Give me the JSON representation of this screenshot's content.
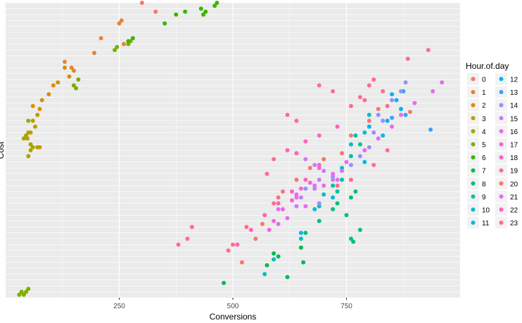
{
  "chart_data": {
    "type": "scatter",
    "xlabel": "Conversions",
    "ylabel": "Cost",
    "xlim": [
      0,
      1000
    ],
    "x_ticks": [
      250,
      500,
      750
    ],
    "y_ticks": [],
    "grid": true,
    "legend": {
      "title": "Hour.of.day",
      "placement": "right",
      "columns": 2,
      "entries": [
        "0",
        "1",
        "2",
        "3",
        "4",
        "5",
        "6",
        "7",
        "8",
        "9",
        "10",
        "11",
        "12",
        "13",
        "14",
        "15",
        "16",
        "17",
        "18",
        "19",
        "20",
        "21",
        "22",
        "23"
      ]
    },
    "colors": [
      "#F8766D",
      "#EA8331",
      "#D89000",
      "#C09B00",
      "#A3A500",
      "#7CAE00",
      "#39B600",
      "#00BB4E",
      "#00BF7D",
      "#00C1A3",
      "#00BFC4",
      "#00BAE0",
      "#00B0F6",
      "#35A2FF",
      "#9590FF",
      "#C77CFF",
      "#E76BF3",
      "#FA62DB",
      "#FF62BC",
      "#FF6C91",
      "#F8766D",
      "#E76BF3",
      "#FF62BC",
      "#FF6C91"
    ],
    "series": [
      {
        "name": "0",
        "points": [
          [
            300,
            100
          ],
          [
            330,
            97
          ]
        ]
      },
      {
        "name": "1",
        "points": [
          [
            250,
            93
          ],
          [
            255,
            94
          ],
          [
            210,
            88
          ],
          [
            260,
            86
          ],
          [
            195,
            83
          ],
          [
            145,
            78
          ],
          [
            130,
            80
          ],
          [
            150,
            77
          ]
        ]
      },
      {
        "name": "2",
        "points": [
          [
            130,
            78
          ],
          [
            140,
            75
          ],
          [
            115,
            73
          ],
          [
            105,
            72
          ],
          [
            95,
            69
          ],
          [
            80,
            67
          ],
          [
            60,
            65
          ],
          [
            75,
            64
          ]
        ]
      },
      {
        "name": "3",
        "points": [
          [
            70,
            62
          ],
          [
            60,
            60
          ],
          [
            65,
            58
          ],
          [
            55,
            56
          ],
          [
            48,
            54
          ],
          [
            50,
            56
          ],
          [
            55,
            50
          ],
          [
            70,
            51
          ],
          [
            75,
            51
          ]
        ]
      },
      {
        "name": "4",
        "points": [
          [
            50,
            60
          ],
          [
            40,
            54
          ],
          [
            45,
            55
          ],
          [
            55,
            52
          ],
          [
            60,
            51
          ],
          [
            50,
            48
          ]
        ]
      },
      {
        "name": "5",
        "points": [
          [
            160,
            74
          ],
          [
            150,
            72
          ],
          [
            155,
            71
          ],
          [
            240,
            84
          ],
          [
            245,
            85
          ],
          [
            275,
            87
          ],
          [
            270,
            86
          ],
          [
            30,
            1
          ],
          [
            35,
            2
          ],
          [
            40,
            1
          ],
          [
            50,
            3
          ],
          [
            45,
            2
          ]
        ]
      },
      {
        "name": "6",
        "points": [
          [
            280,
            88
          ],
          [
            270,
            87
          ],
          [
            350,
            93
          ],
          [
            375,
            96
          ],
          [
            395,
            97
          ],
          [
            430,
            98
          ],
          [
            440,
            97
          ],
          [
            460,
            99
          ],
          [
            465,
            100
          ],
          [
            435,
            96
          ]
        ]
      },
      {
        "name": "7",
        "points": [
          [
            480,
            5
          ],
          [
            575,
            11
          ],
          [
            590,
            15
          ],
          [
            600,
            14
          ],
          [
            650,
            17
          ],
          [
            620,
            7
          ],
          [
            655,
            12
          ]
        ]
      },
      {
        "name": "8",
        "points": [
          [
            760,
            20
          ],
          [
            780,
            23
          ],
          [
            765,
            19
          ],
          [
            750,
            28
          ],
          [
            720,
            30
          ],
          [
            730,
            32
          ],
          [
            760,
            34
          ],
          [
            770,
            36
          ],
          [
            690,
            26
          ],
          [
            660,
            22
          ]
        ]
      },
      {
        "name": "9",
        "points": [
          [
            740,
            40
          ],
          [
            730,
            36
          ],
          [
            760,
            48
          ],
          [
            780,
            52
          ],
          [
            770,
            55
          ],
          [
            720,
            38
          ]
        ]
      },
      {
        "name": "10",
        "points": [
          [
            570,
            8
          ],
          [
            590,
            13
          ],
          [
            650,
            20
          ],
          [
            700,
            35
          ],
          [
            690,
            31
          ],
          [
            740,
            44
          ],
          [
            760,
            52
          ],
          [
            800,
            62
          ],
          [
            790,
            56
          ]
        ]
      },
      {
        "name": "11",
        "points": [
          [
            650,
            22
          ],
          [
            680,
            30
          ],
          [
            720,
            34
          ],
          [
            790,
            46
          ],
          [
            830,
            55
          ]
        ]
      },
      {
        "name": "12",
        "points": [
          [
            870,
            64
          ],
          [
            860,
            67
          ],
          [
            875,
            70
          ],
          [
            850,
            69
          ],
          [
            840,
            60
          ],
          [
            800,
            58
          ]
        ]
      },
      {
        "name": "13",
        "points": [
          [
            935,
            57
          ],
          [
            880,
            62
          ],
          [
            850,
            61
          ]
        ]
      },
      {
        "name": "14",
        "points": [
          [
            660,
            37
          ],
          [
            690,
            32
          ],
          [
            720,
            41
          ],
          [
            760,
            45
          ],
          [
            780,
            48
          ],
          [
            800,
            51
          ],
          [
            810,
            56
          ],
          [
            820,
            62
          ],
          [
            830,
            60
          ],
          [
            850,
            67
          ],
          [
            870,
            70
          ],
          [
            880,
            73
          ]
        ]
      },
      {
        "name": "15",
        "points": [
          [
            660,
            47
          ],
          [
            680,
            45
          ],
          [
            700,
            43
          ],
          [
            690,
            40
          ],
          [
            640,
            31
          ],
          [
            650,
            34
          ],
          [
            680,
            37
          ],
          [
            720,
            40
          ]
        ]
      },
      {
        "name": "16",
        "points": [
          [
            640,
            34
          ],
          [
            660,
            31
          ],
          [
            700,
            38
          ],
          [
            730,
            40
          ],
          [
            740,
            43
          ],
          [
            620,
            27
          ],
          [
            600,
            25
          ]
        ]
      },
      {
        "name": "17",
        "points": [
          [
            580,
            23
          ],
          [
            590,
            26
          ],
          [
            610,
            30
          ],
          [
            630,
            33
          ],
          [
            650,
            37
          ],
          [
            670,
            39
          ],
          [
            690,
            44
          ]
        ]
      },
      {
        "name": "18",
        "points": [
          [
            620,
            50
          ],
          [
            640,
            49
          ],
          [
            660,
            53
          ],
          [
            690,
            55
          ],
          [
            730,
            58
          ]
        ]
      },
      {
        "name": "19",
        "points": [
          [
            840,
            65
          ],
          [
            830,
            70
          ],
          [
            790,
            67
          ],
          [
            800,
            72
          ],
          [
            810,
            74
          ],
          [
            780,
            68
          ],
          [
            760,
            65
          ],
          [
            720,
            70
          ],
          [
            690,
            72
          ],
          [
            640,
            60
          ],
          [
            620,
            62
          ],
          [
            590,
            47
          ],
          [
            575,
            42
          ],
          [
            930,
            84
          ],
          [
            885,
            81
          ]
        ]
      },
      {
        "name": "20",
        "points": [
          [
            520,
            12
          ],
          [
            550,
            20
          ],
          [
            565,
            25
          ],
          [
            600,
            34
          ],
          [
            640,
            40
          ],
          [
            670,
            44
          ],
          [
            700,
            47
          ],
          [
            740,
            49
          ],
          [
            760,
            55
          ],
          [
            800,
            60
          ],
          [
            820,
            64
          ],
          [
            890,
            63
          ]
        ]
      },
      {
        "name": "21",
        "points": [
          [
            600,
            30
          ],
          [
            640,
            35
          ],
          [
            680,
            38
          ],
          [
            720,
            42
          ],
          [
            750,
            46
          ],
          [
            790,
            50
          ],
          [
            820,
            54
          ],
          [
            850,
            58
          ],
          [
            870,
            62
          ],
          [
            900,
            66
          ],
          [
            940,
            70
          ],
          [
            960,
            73
          ]
        ]
      },
      {
        "name": "22",
        "points": [
          [
            510,
            18
          ],
          [
            540,
            23
          ],
          [
            570,
            28
          ],
          [
            600,
            32
          ],
          [
            630,
            36
          ],
          [
            660,
            40
          ],
          [
            690,
            45
          ]
        ]
      },
      {
        "name": "23",
        "points": [
          [
            380,
            18
          ],
          [
            400,
            20
          ],
          [
            410,
            24
          ],
          [
            490,
            16
          ],
          [
            500,
            18
          ],
          [
            530,
            24
          ],
          [
            590,
            32
          ],
          [
            610,
            36
          ],
          [
            730,
            38
          ],
          [
            760,
            40
          ],
          [
            810,
            45
          ],
          [
            840,
            50
          ]
        ]
      }
    ]
  }
}
